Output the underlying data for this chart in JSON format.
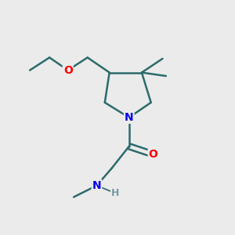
{
  "bg_color": "#ebebeb",
  "bond_color": "#2d6b6b",
  "bond_width": 1.8,
  "atom_colors": {
    "N": "#0000ee",
    "O": "#ff0000",
    "H": "#7a9a9a",
    "C": "#2d6b6b"
  },
  "figsize": [
    3.0,
    3.0
  ],
  "dpi": 100
}
